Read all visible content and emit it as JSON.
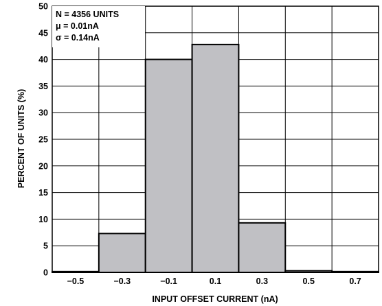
{
  "chart_data": {
    "type": "bar",
    "title": "",
    "xlabel": "INPUT OFFSET CURRENT (nA)",
    "ylabel": "PERCENT OF UNITS (%)",
    "categories": [
      "−0.5",
      "−0.3",
      "−0.1",
      "0.1",
      "0.3",
      "0.5",
      "0.7"
    ],
    "bin_edges": [
      -0.6,
      -0.4,
      -0.2,
      0.0,
      0.2,
      0.4,
      0.6,
      0.8
    ],
    "values": [
      0.15,
      7.3,
      40.0,
      42.8,
      9.3,
      0.3,
      0.15
    ],
    "xlim": [
      -0.6,
      0.8
    ],
    "ylim": [
      0,
      50
    ],
    "yticks": [
      0,
      5,
      10,
      15,
      20,
      25,
      30,
      35,
      40,
      45,
      50
    ],
    "grid": true,
    "bar_fill": "#c0c0c4",
    "bar_stroke": "#000000",
    "annotations": [
      "N = 4356 UNITS",
      "μ = 0.01nA",
      "σ = 0.14nA"
    ]
  }
}
